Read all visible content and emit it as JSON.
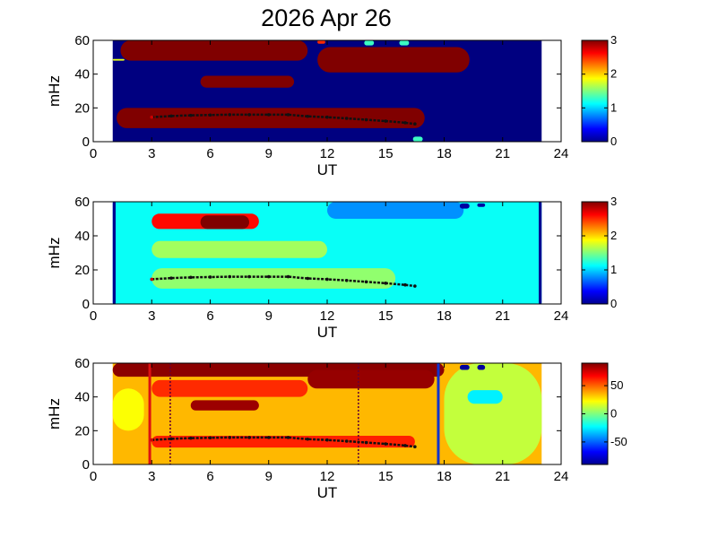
{
  "title": "2026 Apr 26",
  "chart_data": [
    {
      "type": "heatmap",
      "xlabel": "UT",
      "ylabel": "mHz",
      "xlim": [
        0,
        24
      ],
      "ylim": [
        0,
        60
      ],
      "xticks": [
        0,
        3,
        6,
        9,
        12,
        15,
        18,
        21,
        24
      ],
      "yticks": [
        0,
        20,
        40,
        60
      ],
      "data_x_range": [
        1,
        23
      ],
      "colorbar": {
        "range": [
          0,
          3
        ],
        "ticks": [
          0,
          1,
          2,
          3
        ]
      },
      "background_level": 0.0,
      "blobs": [
        {
          "x0": 1.2,
          "x1": 17.0,
          "y0": 8,
          "y1": 20,
          "level": 3
        },
        {
          "x0": 1.4,
          "x1": 11.0,
          "y0": 48,
          "y1": 60,
          "level": 3
        },
        {
          "x0": 11.5,
          "x1": 19.3,
          "y0": 41,
          "y1": 56,
          "level": 3
        },
        {
          "x0": 5.5,
          "x1": 10.3,
          "y0": 32,
          "y1": 39,
          "level": 3
        },
        {
          "x0": 1.0,
          "x1": 1.6,
          "y0": 48,
          "y1": 49,
          "level": 1.8
        },
        {
          "x0": 11.5,
          "x1": 11.9,
          "y0": 58,
          "y1": 60,
          "level": 2.5
        },
        {
          "x0": 13.9,
          "x1": 14.4,
          "y0": 57,
          "y1": 60,
          "level": 1.3
        },
        {
          "x0": 15.7,
          "x1": 16.2,
          "y0": 57,
          "y1": 60,
          "level": 1.3
        },
        {
          "x0": 16.4,
          "x1": 16.9,
          "y0": 0,
          "y1": 3,
          "level": 1.3
        }
      ],
      "trace": {
        "x": [
          3.0,
          4.0,
          5.0,
          6.0,
          7.0,
          8.0,
          9.0,
          10.0,
          11.0,
          12.0,
          13.0,
          14.0,
          15.0,
          16.0,
          16.5
        ],
        "y": [
          14.5,
          15.2,
          15.6,
          15.8,
          16.0,
          16.0,
          16.0,
          16.0,
          15.0,
          14.5,
          13.8,
          13.0,
          12.2,
          11.2,
          10.5
        ]
      }
    },
    {
      "type": "heatmap",
      "xlabel": "UT",
      "ylabel": "mHz",
      "xlim": [
        0,
        24
      ],
      "ylim": [
        0,
        60
      ],
      "xticks": [
        0,
        3,
        6,
        9,
        12,
        15,
        18,
        21,
        24
      ],
      "yticks": [
        0,
        20,
        40,
        60
      ],
      "data_x_range": [
        1,
        23
      ],
      "colorbar": {
        "range": [
          0,
          3
        ],
        "ticks": [
          0,
          1,
          2,
          3
        ]
      },
      "background_level": 1.15,
      "blobs": [
        {
          "x0": 3.0,
          "x1": 8.5,
          "y0": 44,
          "y1": 53,
          "level": 2.6
        },
        {
          "x0": 5.5,
          "x1": 8.0,
          "y0": 44,
          "y1": 52,
          "level": 3.0
        },
        {
          "x0": 3.0,
          "x1": 12.0,
          "y0": 27,
          "y1": 37,
          "level": 1.6
        },
        {
          "x0": 3.0,
          "x1": 15.5,
          "y0": 9,
          "y1": 21,
          "level": 1.55
        },
        {
          "x0": 12.0,
          "x1": 19.0,
          "y0": 50,
          "y1": 60,
          "level": 0.8
        },
        {
          "x0": 18.8,
          "x1": 19.3,
          "y0": 56,
          "y1": 59,
          "level": 0.1
        },
        {
          "x0": 19.7,
          "x1": 20.1,
          "y0": 57,
          "y1": 59,
          "level": 0.1
        },
        {
          "x0": 1.0,
          "x1": 1.15,
          "y0": 0,
          "y1": 60,
          "level": 0.05
        },
        {
          "x0": 22.85,
          "x1": 23.0,
          "y0": 0,
          "y1": 60,
          "level": 0.05
        }
      ],
      "trace": {
        "x": [
          3.0,
          4.0,
          5.0,
          6.0,
          7.0,
          8.0,
          9.0,
          10.0,
          11.0,
          12.0,
          13.0,
          14.0,
          15.0,
          16.0,
          16.5
        ],
        "y": [
          14.5,
          15.2,
          15.6,
          15.8,
          16.0,
          16.0,
          16.0,
          16.0,
          15.0,
          14.5,
          13.8,
          13.0,
          12.2,
          11.2,
          10.5
        ]
      }
    },
    {
      "type": "heatmap",
      "xlabel": "UT",
      "ylabel": "mHz",
      "xlim": [
        0,
        24
      ],
      "ylim": [
        0,
        60
      ],
      "xticks": [
        0,
        3,
        6,
        9,
        12,
        15,
        18,
        21,
        24
      ],
      "yticks": [
        0,
        20,
        40,
        60
      ],
      "data_x_range": [
        1,
        23
      ],
      "colorbar": {
        "range": [
          -90,
          90
        ],
        "ticks": [
          50,
          0,
          -50
        ]
      },
      "background_level": 35,
      "blobs": [
        {
          "x0": 1.0,
          "x1": 18.0,
          "y0": 52,
          "y1": 60,
          "level": 88
        },
        {
          "x0": 11.0,
          "x1": 17.5,
          "y0": 45,
          "y1": 56,
          "level": 86
        },
        {
          "x0": 5.0,
          "x1": 8.5,
          "y0": 32,
          "y1": 38,
          "level": 85
        },
        {
          "x0": 3.0,
          "x1": 11.0,
          "y0": 40,
          "y1": 50,
          "level": 60
        },
        {
          "x0": 3.0,
          "x1": 16.5,
          "y0": 10,
          "y1": 17,
          "level": 62
        },
        {
          "x0": 18.0,
          "x1": 23.0,
          "y0": 0,
          "y1": 60,
          "level": 12
        },
        {
          "x0": 19.2,
          "x1": 21.0,
          "y0": 36,
          "y1": 44,
          "level": -25
        },
        {
          "x0": 1.0,
          "x1": 2.6,
          "y0": 20,
          "y1": 45,
          "level": 22
        },
        {
          "x0": 18.8,
          "x1": 19.3,
          "y0": 56,
          "y1": 59,
          "level": -85
        },
        {
          "x0": 19.7,
          "x1": 20.1,
          "y0": 56,
          "y1": 59,
          "level": -85
        }
      ],
      "vlines": [
        {
          "x": 2.9,
          "color": "#dd1111",
          "style": "solid"
        },
        {
          "x": 17.7,
          "color": "#1133cc",
          "style": "solid"
        },
        {
          "x": 3.95,
          "color": "#660033",
          "style": "dotted"
        },
        {
          "x": 13.6,
          "color": "#660033",
          "style": "dotted"
        }
      ],
      "trace": {
        "x": [
          3.0,
          4.0,
          5.0,
          6.0,
          7.0,
          8.0,
          9.0,
          10.0,
          11.0,
          12.0,
          13.0,
          14.0,
          15.0,
          16.0,
          16.5
        ],
        "y": [
          14.5,
          15.2,
          15.6,
          15.8,
          16.0,
          16.0,
          16.0,
          16.0,
          15.0,
          14.5,
          13.8,
          13.0,
          12.2,
          11.2,
          10.5
        ]
      }
    }
  ]
}
